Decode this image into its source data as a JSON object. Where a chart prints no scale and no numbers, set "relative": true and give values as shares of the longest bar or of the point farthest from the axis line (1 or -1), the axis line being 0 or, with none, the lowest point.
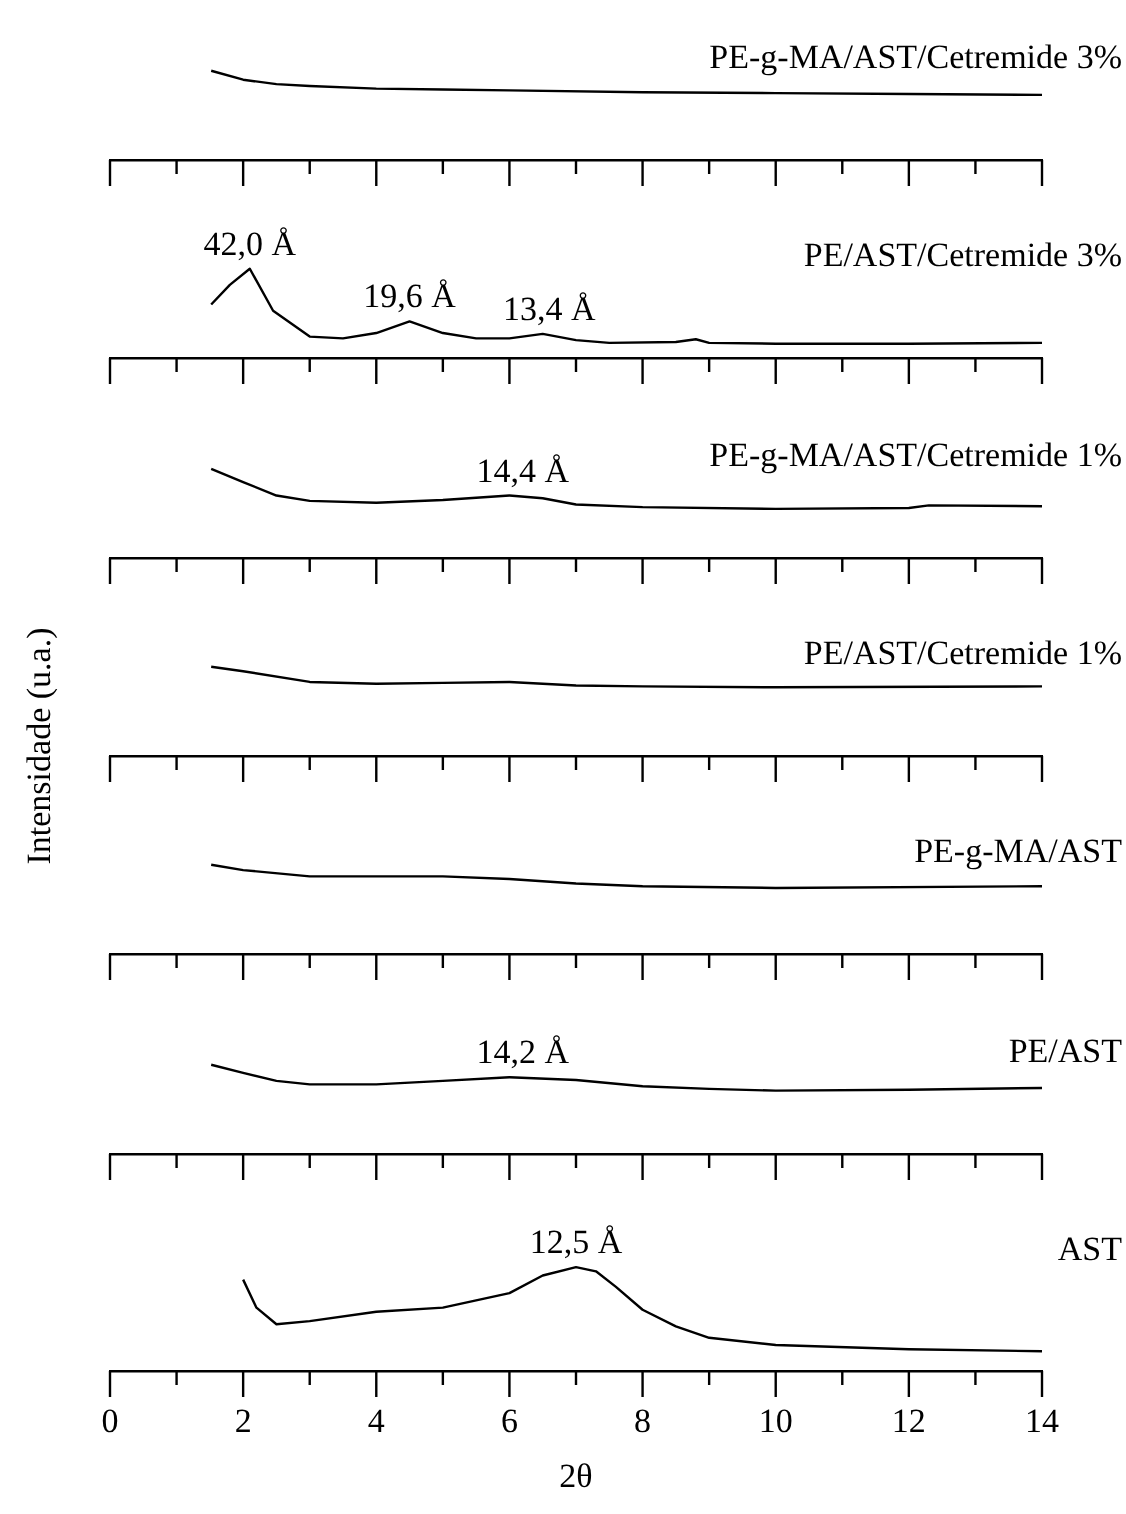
{
  "chart_data": [
    {
      "type": "line",
      "relative": true,
      "xlim": [
        0,
        14
      ],
      "xticks": [
        0,
        {
          "value": 1,
          "label": null
        },
        2,
        {
          "value": 3,
          "label": null
        },
        4,
        {
          "value": 5,
          "label": null
        },
        6,
        {
          "value": 7,
          "label": null
        },
        8,
        {
          "value": 9,
          "label": null
        },
        10,
        {
          "value": 11,
          "label": null
        },
        12,
        {
          "value": 13,
          "label": null
        },
        14
      ],
      "tick_labels": false,
      "x": [
        1.52,
        2,
        2.5,
        3,
        4,
        5,
        6,
        8,
        10,
        12,
        14
      ],
      "series": [
        {
          "name": "PE-g-MA/AST/Cetremide 3%",
          "color": "#000000",
          "values": [
            1,
            0.9,
            0.85,
            0.83,
            0.8,
            0.79,
            0.78,
            0.76,
            0.75,
            0.74,
            0.73
          ]
        }
      ]
    },
    {
      "type": "line",
      "relative": true,
      "xlim": [
        0,
        14
      ],
      "xticks": [
        0,
        {
          "value": 1,
          "label": null
        },
        2,
        {
          "value": 3,
          "label": null
        },
        4,
        {
          "value": 5,
          "label": null
        },
        6,
        {
          "value": 7,
          "label": null
        },
        8,
        {
          "value": 9,
          "label": null
        },
        10,
        {
          "value": 11,
          "label": null
        },
        12,
        {
          "value": 13,
          "label": null
        },
        14
      ],
      "tick_labels": false,
      "x": [
        1.52,
        1.8,
        2.1,
        2.45,
        3,
        3.5,
        4,
        4.5,
        5,
        5.5,
        6,
        6.5,
        7,
        7.5,
        8.5,
        8.8,
        9,
        10,
        12,
        14
      ],
      "series": [
        {
          "name": "PE/AST/Cetremide 3%",
          "color": "#000000",
          "values": [
            0.6,
            0.82,
            1,
            0.53,
            0.24,
            0.22,
            0.28,
            0.41,
            0.28,
            0.22,
            0.22,
            0.27,
            0.2,
            0.17,
            0.18,
            0.21,
            0.17,
            0.16,
            0.16,
            0.17
          ]
        }
      ],
      "annotations": [
        {
          "text": "42,0 Å",
          "x": 2.1,
          "y": 1
        },
        {
          "text": "19,6 Å",
          "x": 4.5,
          "y": 0.41
        },
        {
          "text": "13,4 Å",
          "x": 6.6,
          "y": 0.27
        }
      ]
    },
    {
      "type": "line",
      "relative": true,
      "xlim": [
        0,
        14
      ],
      "xticks": [
        0,
        {
          "value": 1,
          "label": null
        },
        2,
        {
          "value": 3,
          "label": null
        },
        4,
        {
          "value": 5,
          "label": null
        },
        6,
        {
          "value": 7,
          "label": null
        },
        8,
        {
          "value": 9,
          "label": null
        },
        10,
        {
          "value": 11,
          "label": null
        },
        12,
        {
          "value": 13,
          "label": null
        },
        14
      ],
      "tick_labels": false,
      "x": [
        1.52,
        2,
        2.5,
        3,
        4,
        5,
        6,
        6.5,
        7,
        8,
        10,
        12,
        12.3,
        14
      ],
      "series": [
        {
          "name": "PE-g-MA/AST/Cetremide 1%",
          "color": "#000000",
          "values": [
            1,
            0.85,
            0.7,
            0.64,
            0.62,
            0.65,
            0.7,
            0.67,
            0.6,
            0.57,
            0.55,
            0.56,
            0.59,
            0.58
          ]
        }
      ],
      "annotations": [
        {
          "text": "14,4 Å",
          "x": 6.2,
          "y": 0.7
        }
      ]
    },
    {
      "type": "line",
      "relative": true,
      "xlim": [
        0,
        14
      ],
      "xticks": [
        0,
        {
          "value": 1,
          "label": null
        },
        2,
        {
          "value": 3,
          "label": null
        },
        4,
        {
          "value": 5,
          "label": null
        },
        6,
        {
          "value": 7,
          "label": null
        },
        8,
        {
          "value": 9,
          "label": null
        },
        10,
        {
          "value": 11,
          "label": null
        },
        12,
        {
          "value": 13,
          "label": null
        },
        14
      ],
      "tick_labels": false,
      "ylabel": "Intensidade (u.a.)",
      "x": [
        1.52,
        2,
        3,
        4,
        5,
        6,
        7,
        8,
        10,
        14
      ],
      "series": [
        {
          "name": "PE/AST/Cetremide 1%",
          "color": "#000000",
          "values": [
            1,
            0.95,
            0.83,
            0.81,
            0.82,
            0.83,
            0.79,
            0.78,
            0.77,
            0.78
          ]
        }
      ]
    },
    {
      "type": "line",
      "relative": true,
      "xlim": [
        0,
        14
      ],
      "xticks": [
        0,
        {
          "value": 1,
          "label": null
        },
        2,
        {
          "value": 3,
          "label": null
        },
        4,
        {
          "value": 5,
          "label": null
        },
        6,
        {
          "value": 7,
          "label": null
        },
        8,
        {
          "value": 9,
          "label": null
        },
        10,
        {
          "value": 11,
          "label": null
        },
        12,
        {
          "value": 13,
          "label": null
        },
        14
      ],
      "tick_labels": false,
      "x": [
        1.52,
        2,
        3,
        5,
        6,
        7,
        8,
        10,
        14
      ],
      "series": [
        {
          "name": "PE-g-MA/AST",
          "color": "#000000",
          "values": [
            1,
            0.94,
            0.87,
            0.87,
            0.84,
            0.79,
            0.76,
            0.74,
            0.76
          ]
        }
      ]
    },
    {
      "type": "line",
      "relative": true,
      "xlim": [
        0,
        14
      ],
      "xticks": [
        0,
        {
          "value": 1,
          "label": null
        },
        2,
        {
          "value": 3,
          "label": null
        },
        4,
        {
          "value": 5,
          "label": null
        },
        6,
        {
          "value": 7,
          "label": null
        },
        8,
        {
          "value": 9,
          "label": null
        },
        10,
        {
          "value": 11,
          "label": null
        },
        12,
        {
          "value": 13,
          "label": null
        },
        14
      ],
      "tick_labels": false,
      "x": [
        1.52,
        2,
        2.5,
        3,
        4,
        5,
        6,
        7,
        8,
        9,
        10,
        12,
        14
      ],
      "series": [
        {
          "name": "PE/AST",
          "color": "#000000",
          "values": [
            1,
            0.91,
            0.82,
            0.78,
            0.78,
            0.82,
            0.86,
            0.83,
            0.76,
            0.73,
            0.71,
            0.72,
            0.74
          ]
        }
      ],
      "annotations": [
        {
          "text": "14,2 Å",
          "x": 6.2,
          "y": 0.86
        }
      ]
    },
    {
      "type": "line",
      "relative": true,
      "xlim": [
        0,
        14
      ],
      "xticks": [
        0,
        {
          "value": 1,
          "label": null
        },
        2,
        {
          "value": 3,
          "label": null
        },
        4,
        {
          "value": 5,
          "label": null
        },
        6,
        {
          "value": 7,
          "label": null
        },
        8,
        {
          "value": 9,
          "label": null
        },
        10,
        {
          "value": 11,
          "label": null
        },
        12,
        {
          "value": 13,
          "label": null
        },
        14
      ],
      "tick_labels": "x",
      "xlabel": "2θ",
      "x": [
        2,
        2.2,
        2.5,
        3,
        4,
        5,
        6,
        6.5,
        7,
        7.3,
        7.6,
        8,
        8.5,
        9,
        10,
        12,
        14
      ],
      "series": [
        {
          "name": "AST",
          "color": "#000000",
          "values": [
            0.88,
            0.61,
            0.45,
            0.48,
            0.57,
            0.61,
            0.75,
            0.92,
            1,
            0.96,
            0.81,
            0.59,
            0.43,
            0.32,
            0.25,
            0.21,
            0.19
          ]
        }
      ],
      "annotations": [
        {
          "text": "12,5 Å",
          "x": 7,
          "y": 1
        }
      ]
    }
  ]
}
